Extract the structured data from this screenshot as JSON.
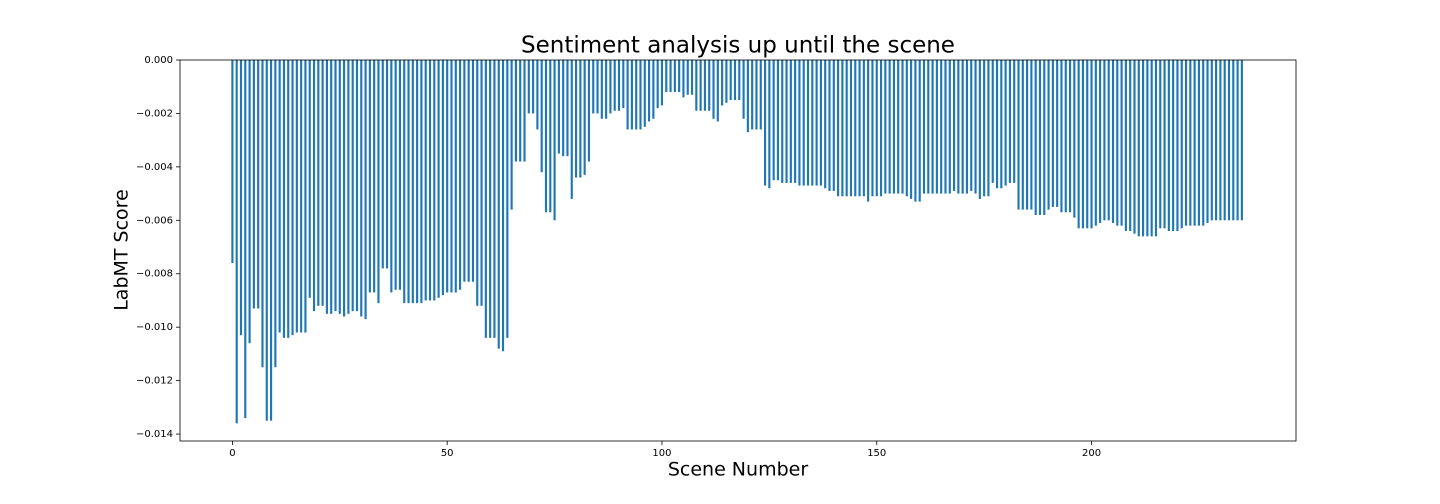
{
  "chart_data": {
    "type": "bar",
    "title": "Sentiment analysis up until the scene",
    "xlabel": "Scene Number",
    "ylabel": "LabMT Score",
    "color": "#1f77b4",
    "x": [
      0,
      1,
      2,
      3,
      4,
      5,
      6,
      7,
      8,
      9,
      10,
      11,
      12,
      13,
      14,
      15,
      16,
      17,
      18,
      19,
      20,
      21,
      22,
      23,
      24,
      25,
      26,
      27,
      28,
      29,
      30,
      31,
      32,
      33,
      34,
      35,
      36,
      37,
      38,
      39,
      40,
      41,
      42,
      43,
      44,
      45,
      46,
      47,
      48,
      49,
      50,
      51,
      52,
      53,
      54,
      55,
      56,
      57,
      58,
      59,
      60,
      61,
      62,
      63,
      64,
      65,
      66,
      67,
      68,
      69,
      70,
      71,
      72,
      73,
      74,
      75,
      76,
      77,
      78,
      79,
      80,
      81,
      82,
      83,
      84,
      85,
      86,
      87,
      88,
      89,
      90,
      91,
      92,
      93,
      94,
      95,
      96,
      97,
      98,
      99,
      100,
      101,
      102,
      103,
      104,
      105,
      106,
      107,
      108,
      109,
      110,
      111,
      112,
      113,
      114,
      115,
      116,
      117,
      118,
      119,
      120,
      121,
      122,
      123,
      124,
      125,
      126,
      127,
      128,
      129,
      130,
      131,
      132,
      133,
      134,
      135,
      136,
      137,
      138,
      139,
      140,
      141,
      142,
      143,
      144,
      145,
      146,
      147,
      148,
      149,
      150,
      151,
      152,
      153,
      154,
      155,
      156,
      157,
      158,
      159,
      160,
      161,
      162,
      163,
      164,
      165,
      166,
      167,
      168,
      169,
      170,
      171,
      172,
      173,
      174,
      175,
      176,
      177,
      178,
      179,
      180,
      181,
      182,
      183,
      184,
      185,
      186,
      187,
      188,
      189,
      190,
      191,
      192,
      193,
      194,
      195,
      196,
      197,
      198,
      199,
      200,
      201,
      202,
      203,
      204,
      205,
      206,
      207,
      208,
      209,
      210,
      211,
      212,
      213,
      214,
      215,
      216,
      217,
      218,
      219,
      220,
      221,
      222,
      223,
      224,
      225,
      226,
      227,
      228,
      229,
      230,
      231,
      232,
      233,
      234,
      235
    ],
    "values": [
      -0.0076,
      -0.0136,
      -0.0103,
      -0.0134,
      -0.0106,
      -0.0093,
      -0.0093,
      -0.0115,
      -0.0135,
      -0.0135,
      -0.0115,
      -0.0102,
      -0.0104,
      -0.0104,
      -0.0103,
      -0.0102,
      -0.0102,
      -0.0102,
      -0.0089,
      -0.0094,
      -0.0092,
      -0.0092,
      -0.0095,
      -0.0095,
      -0.0094,
      -0.0095,
      -0.0096,
      -0.0095,
      -0.0094,
      -0.0094,
      -0.0096,
      -0.0097,
      -0.0087,
      -0.0087,
      -0.0091,
      -0.0078,
      -0.0078,
      -0.0087,
      -0.0086,
      -0.0086,
      -0.0091,
      -0.0091,
      -0.0091,
      -0.0091,
      -0.0091,
      -0.009,
      -0.009,
      -0.009,
      -0.0089,
      -0.0088,
      -0.0087,
      -0.0087,
      -0.0087,
      -0.0086,
      -0.0083,
      -0.0083,
      -0.0083,
      -0.0092,
      -0.0092,
      -0.0104,
      -0.0104,
      -0.0104,
      -0.0108,
      -0.0109,
      -0.0104,
      -0.0056,
      -0.0038,
      -0.0038,
      -0.0038,
      -0.002,
      -0.002,
      -0.0026,
      -0.0042,
      -0.0057,
      -0.0057,
      -0.006,
      -0.0035,
      -0.0036,
      -0.0036,
      -0.0052,
      -0.0044,
      -0.0044,
      -0.0043,
      -0.0038,
      -0.002,
      -0.002,
      -0.0022,
      -0.0022,
      -0.002,
      -0.0019,
      -0.0019,
      -0.0018,
      -0.0026,
      -0.0026,
      -0.0026,
      -0.0026,
      -0.0025,
      -0.0023,
      -0.0022,
      -0.0018,
      -0.0017,
      -0.0012,
      -0.0012,
      -0.0012,
      -0.0012,
      -0.0014,
      -0.0013,
      -0.0013,
      -0.0019,
      -0.0019,
      -0.0019,
      -0.0019,
      -0.0022,
      -0.0023,
      -0.0017,
      -0.0016,
      -0.0015,
      -0.0015,
      -0.0015,
      -0.0022,
      -0.0027,
      -0.0026,
      -0.0026,
      -0.0026,
      -0.0047,
      -0.0048,
      -0.0045,
      -0.0045,
      -0.0046,
      -0.0046,
      -0.0046,
      -0.0046,
      -0.0047,
      -0.0047,
      -0.0047,
      -0.0047,
      -0.0047,
      -0.0047,
      -0.0048,
      -0.0049,
      -0.0049,
      -0.0051,
      -0.0051,
      -0.0051,
      -0.0051,
      -0.0051,
      -0.0051,
      -0.0051,
      -0.0053,
      -0.0051,
      -0.0051,
      -0.0051,
      -0.005,
      -0.005,
      -0.005,
      -0.005,
      -0.005,
      -0.0051,
      -0.0052,
      -0.0053,
      -0.0053,
      -0.005,
      -0.005,
      -0.005,
      -0.005,
      -0.005,
      -0.005,
      -0.005,
      -0.0049,
      -0.005,
      -0.005,
      -0.005,
      -0.0049,
      -0.005,
      -0.0052,
      -0.0051,
      -0.0051,
      -0.0046,
      -0.0048,
      -0.0048,
      -0.0047,
      -0.0046,
      -0.0046,
      -0.0056,
      -0.0056,
      -0.0056,
      -0.0056,
      -0.0058,
      -0.0058,
      -0.0058,
      -0.0056,
      -0.0055,
      -0.0055,
      -0.0057,
      -0.0057,
      -0.0057,
      -0.0059,
      -0.0063,
      -0.0063,
      -0.0063,
      -0.0063,
      -0.0062,
      -0.0061,
      -0.006,
      -0.006,
      -0.0061,
      -0.0062,
      -0.0062,
      -0.0064,
      -0.0064,
      -0.0065,
      -0.0066,
      -0.0066,
      -0.0066,
      -0.0066,
      -0.0066,
      -0.0063,
      -0.0063,
      -0.0064,
      -0.0064,
      -0.0064,
      -0.0063,
      -0.0062,
      -0.0062,
      -0.0062,
      -0.0062,
      -0.0062,
      -0.0061,
      -0.006,
      -0.006,
      -0.006,
      -0.006,
      -0.006,
      -0.006,
      -0.006,
      -0.006
    ],
    "xlim": [
      -12.2,
      247.6
    ],
    "xticks": [
      0,
      50,
      100,
      150,
      200
    ],
    "ylim": [
      -0.01426,
      0
    ],
    "yticks": [
      {
        "value": 0,
        "label": "0.000"
      },
      {
        "value": -0.002,
        "label": "−0.002"
      },
      {
        "value": -0.004,
        "label": "−0.004"
      },
      {
        "value": -0.006,
        "label": "−0.006"
      },
      {
        "value": -0.008,
        "label": "−0.008"
      },
      {
        "value": -0.01,
        "label": "−0.010"
      },
      {
        "value": -0.012,
        "label": "−0.012"
      },
      {
        "value": -0.014,
        "label": "−0.014"
      }
    ]
  }
}
